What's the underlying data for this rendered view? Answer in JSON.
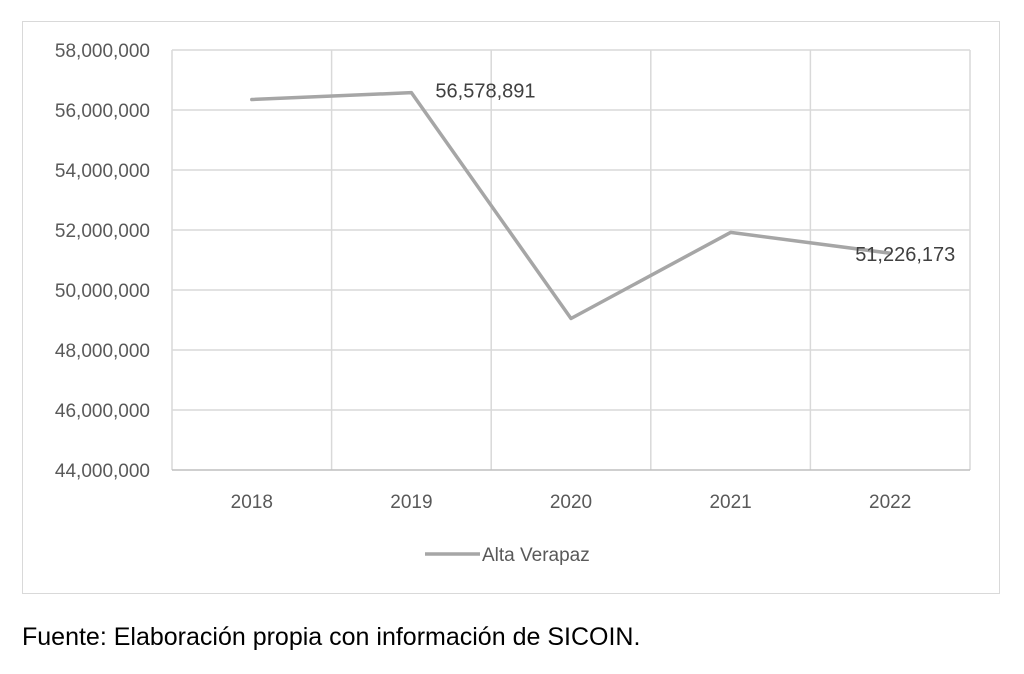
{
  "chart_data": {
    "type": "line",
    "categories": [
      "2018",
      "2019",
      "2020",
      "2021",
      "2022"
    ],
    "series": [
      {
        "name": "Alta Verapaz",
        "values": [
          56350000,
          56578891,
          49050000,
          51920000,
          51226173
        ],
        "color": "#a6a6a6"
      }
    ],
    "data_labels": [
      {
        "index": 1,
        "text": "56,578,891"
      },
      {
        "index": 4,
        "text": "51,226,173"
      }
    ],
    "ylim": [
      44000000,
      58000000
    ],
    "y_ticks": [
      "44,000,000",
      "46,000,000",
      "48,000,000",
      "50,000,000",
      "52,000,000",
      "54,000,000",
      "56,000,000",
      "58,000,000"
    ],
    "y_tick_values": [
      44000000,
      46000000,
      48000000,
      50000000,
      52000000,
      54000000,
      56000000,
      58000000
    ],
    "grid": true,
    "legend_position": "bottom",
    "title": "",
    "xlabel": "",
    "ylabel": ""
  },
  "source_note": "Fuente: Elaboración propia con información de SICOIN."
}
